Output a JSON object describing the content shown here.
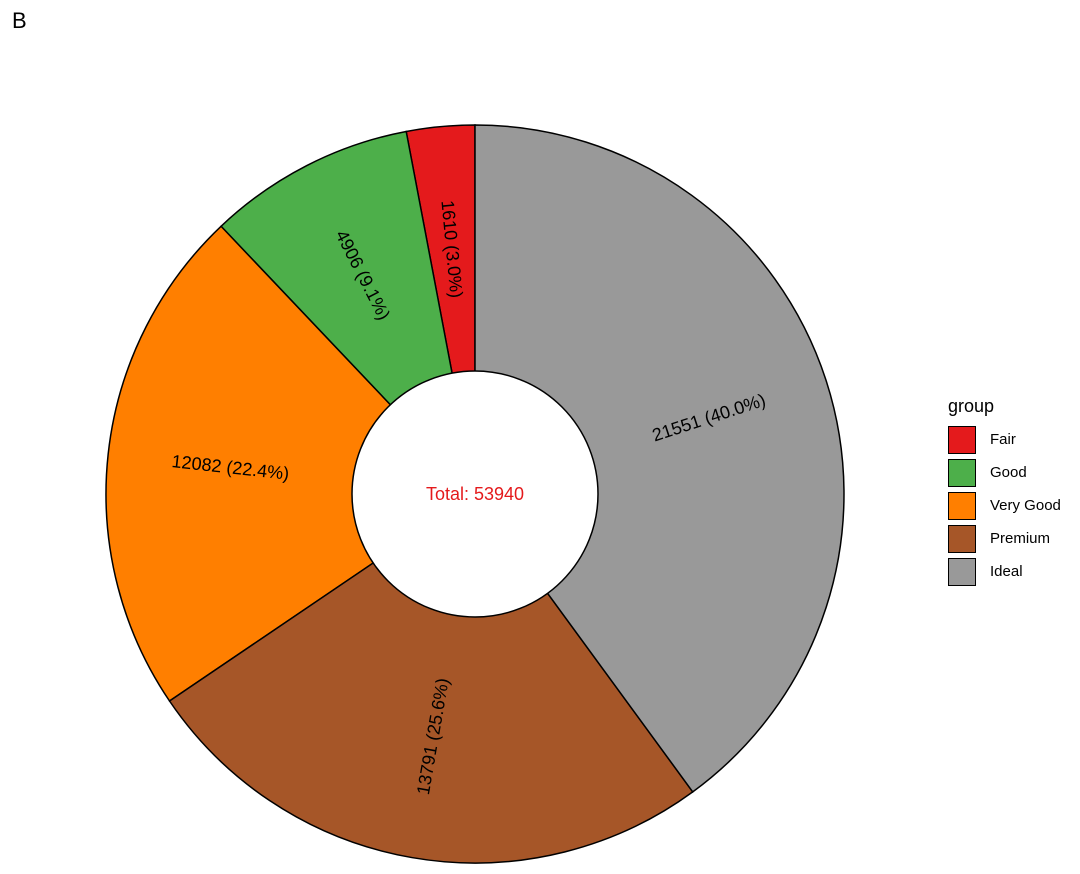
{
  "panel_label": "B",
  "chart_data": {
    "type": "pie",
    "donut": true,
    "categories": [
      "Fair",
      "Good",
      "Very Good",
      "Premium",
      "Ideal"
    ],
    "values": [
      1610,
      4906,
      12082,
      13791,
      21551
    ],
    "percents": [
      "3.0%",
      "9.1%",
      "22.4%",
      "25.6%",
      "40.0%"
    ],
    "labels": [
      "1610 (3.0%)",
      "4906 (9.1%)",
      "12082 (22.4%)",
      "13791 (25.6%)",
      "21551 (40.0%)"
    ],
    "colors": [
      "#E41A1C",
      "#4DAF4A",
      "#FF7F00",
      "#A65628",
      "#999999"
    ],
    "center_text": "Total: 53940",
    "center_text_color": "#E41A1C",
    "legend_title": "group",
    "legend_position": "right",
    "direction": "counter-clockwise from top"
  }
}
